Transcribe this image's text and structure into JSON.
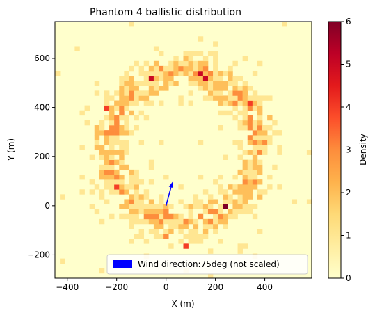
{
  "chart_data": {
    "type": "heatmap",
    "title": "Phantom 4 ballistic distribution",
    "xlabel": "X (m)",
    "ylabel": "Y (m)",
    "xlim": [
      -450,
      590
    ],
    "ylim": [
      -295,
      750
    ],
    "xticks": [
      -400,
      -200,
      0,
      200,
      400
    ],
    "yticks": [
      -200,
      0,
      200,
      400,
      600
    ],
    "colorbar": {
      "label": "Density",
      "range": [
        0,
        6
      ],
      "ticks": [
        0,
        1,
        2,
        3,
        4,
        5,
        6
      ],
      "colormap": "YlOrRd"
    },
    "distribution": {
      "shape": "ring",
      "center": [
        70,
        240
      ],
      "radius": 300,
      "radial_spread": 70,
      "hotspots": [
        {
          "x": 140,
          "y": 530,
          "value": 5
        },
        {
          "x": -70,
          "y": 510,
          "value": 5
        },
        {
          "x": 160,
          "y": 510,
          "value": 5
        },
        {
          "x": 330,
          "y": 410,
          "value": 4
        },
        {
          "x": -250,
          "y": 390,
          "value": 4
        },
        {
          "x": 240,
          "y": -10,
          "value": 6
        },
        {
          "x": -210,
          "y": 70,
          "value": 4
        },
        {
          "x": 80,
          "y": -160,
          "value": 4
        },
        {
          "x": -10,
          "y": -120,
          "value": 3
        }
      ]
    },
    "wind_arrow": {
      "x": 0,
      "y": 0,
      "dx": 26,
      "dy": 97,
      "color": "#0000ff"
    },
    "legend": {
      "label": "Wind direction:75deg (not scaled)",
      "placement": "lower-right",
      "swatch_color": "#0000ff"
    },
    "background_color": "#ffffcc"
  }
}
